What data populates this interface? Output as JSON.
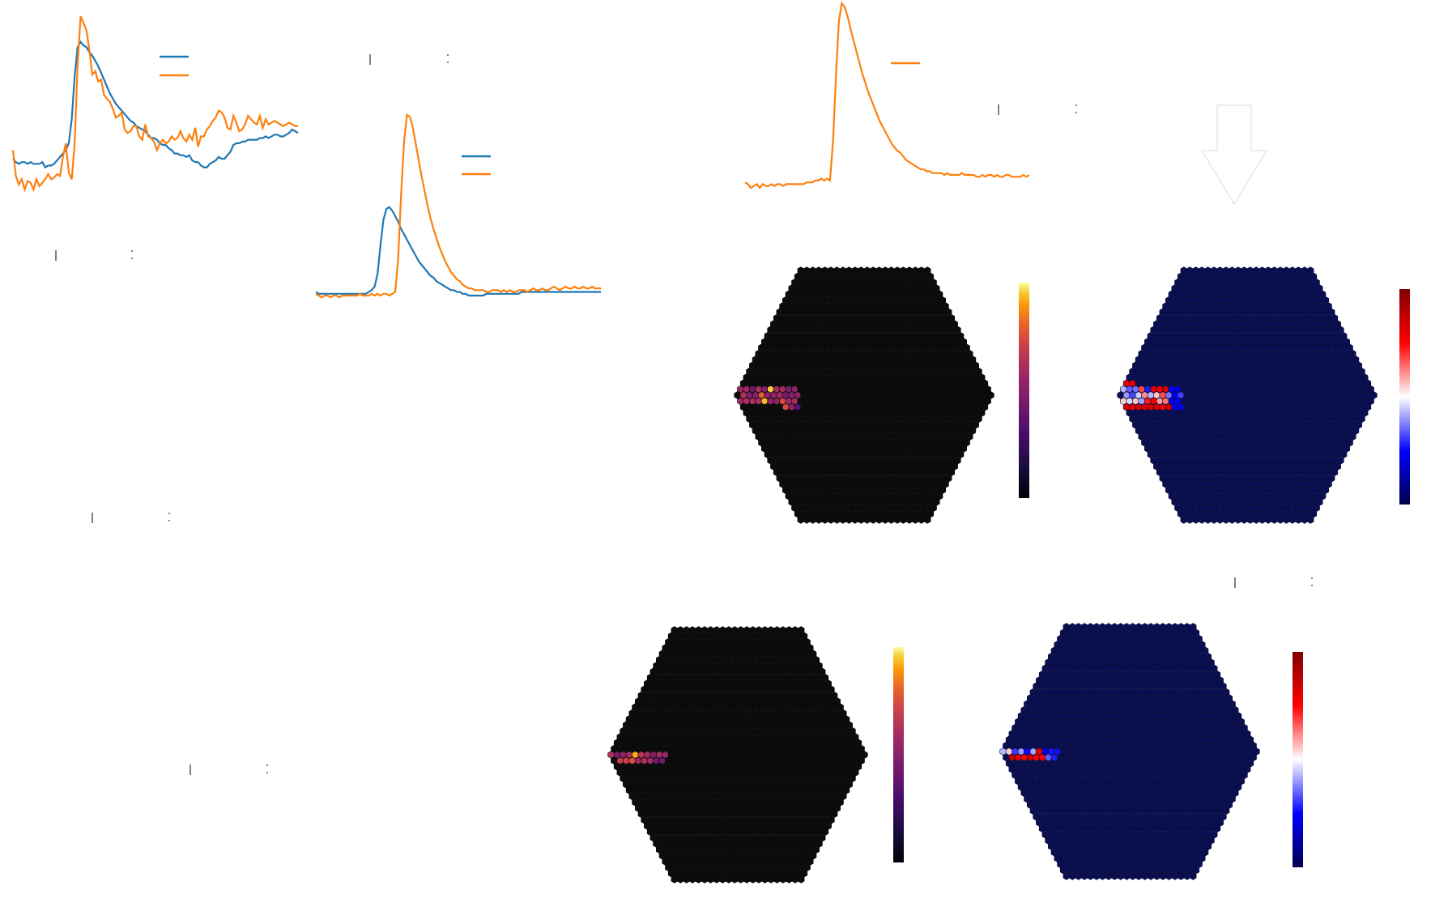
{
  "figure": {
    "colors": {
      "background": "#ffffff",
      "trace_blue": "#1f77b4",
      "trace_orange": "#ff7f0e",
      "camera_dark": "#0c0c0c",
      "camera_navy": "#0a0f52"
    },
    "icons": [
      "down-arrow-icon"
    ]
  },
  "chart_data": [
    {
      "type": "line",
      "panel": "waveform-noisy",
      "series": [
        {
          "color": "#1f77b4",
          "values": [
            0.17,
            0.15,
            0.14,
            0.15,
            0.15,
            0.14,
            0.15,
            0.14,
            0.14,
            0.14,
            0.15,
            0.12,
            0.13,
            0.13,
            0.14,
            0.16,
            0.18,
            0.2,
            0.22,
            0.26,
            0.4,
            0.65,
            0.82,
            0.85,
            0.83,
            0.82,
            0.79,
            0.77,
            0.74,
            0.71,
            0.67,
            0.63,
            0.59,
            0.55,
            0.52,
            0.49,
            0.47,
            0.45,
            0.43,
            0.41,
            0.39,
            0.38,
            0.36,
            0.35,
            0.34,
            0.33,
            0.31,
            0.29,
            0.29,
            0.28,
            0.26,
            0.25,
            0.25,
            0.23,
            0.22,
            0.2,
            0.2,
            0.19,
            0.19,
            0.18,
            0.19,
            0.16,
            0.15,
            0.15,
            0.13,
            0.12,
            0.12,
            0.14,
            0.15,
            0.16,
            0.18,
            0.17,
            0.17,
            0.19,
            0.21,
            0.25,
            0.26,
            0.26,
            0.27,
            0.27,
            0.28,
            0.28,
            0.28,
            0.28,
            0.29,
            0.29,
            0.3,
            0.29,
            0.3,
            0.31,
            0.31,
            0.3,
            0.3,
            0.31,
            0.32,
            0.34,
            0.33,
            0.32
          ]
        },
        {
          "color": "#ff7f0e",
          "values": [
            0.22,
            0.07,
            0.02,
            0.05,
            -0.01,
            0.04,
            0.03,
            -0.01,
            0.05,
            0.01,
            0.03,
            0.05,
            0.08,
            0.05,
            0.06,
            0.08,
            0.07,
            0.18,
            0.26,
            0.09,
            0.05,
            0.26,
            0.71,
            1.0,
            0.96,
            0.92,
            0.8,
            0.66,
            0.68,
            0.62,
            0.63,
            0.54,
            0.52,
            0.5,
            0.46,
            0.41,
            0.42,
            0.44,
            0.34,
            0.32,
            0.33,
            0.36,
            0.36,
            0.3,
            0.28,
            0.37,
            0.3,
            0.29,
            0.27,
            0.22,
            0.26,
            0.28,
            0.26,
            0.27,
            0.3,
            0.28,
            0.29,
            0.33,
            0.29,
            0.27,
            0.31,
            0.28,
            0.35,
            0.24,
            0.3,
            0.3,
            0.34,
            0.36,
            0.39,
            0.41,
            0.45,
            0.44,
            0.41,
            0.35,
            0.34,
            0.42,
            0.38,
            0.33,
            0.34,
            0.37,
            0.42,
            0.4,
            0.38,
            0.37,
            0.42,
            0.35,
            0.4,
            0.37,
            0.38,
            0.39,
            0.38,
            0.37,
            0.36,
            0.37,
            0.38,
            0.37,
            0.36,
            0.36
          ]
        }
      ]
    },
    {
      "type": "line",
      "panel": "waveform-smooth",
      "series": [
        {
          "color": "#1f77b4",
          "values": [
            0.02,
            0.01,
            0.01,
            0.01,
            0.01,
            0.01,
            0.01,
            0.01,
            0.01,
            0.01,
            0.01,
            0.01,
            0.01,
            0.01,
            0.01,
            0.01,
            0.01,
            0.01,
            0.02,
            0.03,
            0.05,
            0.12,
            0.28,
            0.42,
            0.48,
            0.49,
            0.47,
            0.44,
            0.41,
            0.37,
            0.34,
            0.31,
            0.28,
            0.25,
            0.22,
            0.19,
            0.17,
            0.15,
            0.13,
            0.11,
            0.1,
            0.08,
            0.07,
            0.06,
            0.05,
            0.04,
            0.03,
            0.03,
            0.02,
            0.02,
            0.01,
            0.01,
            0.0,
            0.0,
            0.0,
            0.0,
            0.0,
            0.0,
            0.01,
            0.01,
            0.01,
            0.01,
            0.01,
            0.01,
            0.01,
            0.01,
            0.01,
            0.01,
            0.01,
            0.01,
            0.02,
            0.02,
            0.02,
            0.02,
            0.02,
            0.02,
            0.02,
            0.02,
            0.02,
            0.02,
            0.02,
            0.02,
            0.02,
            0.02,
            0.02,
            0.02,
            0.02,
            0.02,
            0.02,
            0.02,
            0.02,
            0.02,
            0.02,
            0.02,
            0.02,
            0.02,
            0.02,
            0.02
          ]
        },
        {
          "color": "#ff7f0e",
          "values": [
            0.01,
            0.0,
            -0.01,
            0.0,
            0.0,
            -0.01,
            0.0,
            0.0,
            -0.01,
            0.0,
            0.0,
            0.0,
            0.0,
            0.0,
            0.0,
            0.01,
            0.0,
            0.0,
            0.0,
            0.01,
            0.0,
            0.01,
            0.0,
            0.01,
            0.01,
            0.0,
            0.01,
            0.02,
            0.2,
            0.55,
            0.85,
            1.0,
            0.99,
            0.93,
            0.84,
            0.75,
            0.66,
            0.58,
            0.5,
            0.43,
            0.37,
            0.32,
            0.27,
            0.23,
            0.19,
            0.16,
            0.13,
            0.11,
            0.09,
            0.08,
            0.06,
            0.05,
            0.04,
            0.04,
            0.03,
            0.03,
            0.03,
            0.03,
            0.02,
            0.02,
            0.03,
            0.03,
            0.03,
            0.02,
            0.03,
            0.02,
            0.03,
            0.02,
            0.02,
            0.03,
            0.03,
            0.03,
            0.02,
            0.03,
            0.04,
            0.03,
            0.03,
            0.04,
            0.03,
            0.03,
            0.04,
            0.05,
            0.04,
            0.03,
            0.04,
            0.05,
            0.04,
            0.04,
            0.05,
            0.04,
            0.04,
            0.05,
            0.04,
            0.04,
            0.05,
            0.04,
            0.04,
            0.04
          ]
        }
      ]
    },
    {
      "type": "line",
      "panel": "waveform-single",
      "series": [
        {
          "color": "#ff7f0e",
          "values": [
            0.03,
            0.02,
            0.0,
            0.01,
            0.02,
            0.0,
            0.02,
            0.01,
            0.01,
            0.02,
            0.01,
            0.02,
            0.02,
            0.01,
            0.02,
            0.02,
            0.02,
            0.02,
            0.02,
            0.02,
            0.02,
            0.03,
            0.03,
            0.03,
            0.04,
            0.04,
            0.05,
            0.04,
            0.05,
            0.04,
            0.25,
            0.6,
            0.9,
            1.0,
            0.98,
            0.93,
            0.86,
            0.8,
            0.74,
            0.68,
            0.62,
            0.57,
            0.52,
            0.48,
            0.44,
            0.4,
            0.36,
            0.33,
            0.3,
            0.27,
            0.24,
            0.22,
            0.2,
            0.19,
            0.17,
            0.15,
            0.14,
            0.13,
            0.12,
            0.11,
            0.1,
            0.1,
            0.09,
            0.09,
            0.08,
            0.08,
            0.08,
            0.08,
            0.07,
            0.08,
            0.07,
            0.07,
            0.07,
            0.07,
            0.08,
            0.07,
            0.07,
            0.07,
            0.07,
            0.06,
            0.06,
            0.07,
            0.06,
            0.07,
            0.07,
            0.06,
            0.07,
            0.06,
            0.06,
            0.07,
            0.07,
            0.06,
            0.06,
            0.06,
            0.06,
            0.07,
            0.06,
            0.07
          ]
        }
      ]
    },
    {
      "type": "heatmap",
      "panel": "camera-charge-top",
      "colormap": "inferno",
      "background": "#0c0c0c",
      "event": {
        "u0": -0.88,
        "v0": 0.0,
        "length": 0.42,
        "width": 0.07,
        "peak": 1.0,
        "min": 0.18
      }
    },
    {
      "type": "heatmap",
      "panel": "camera-time-top",
      "colormap": "seismic",
      "background": "#0a0f52",
      "event": {
        "u0": -0.88,
        "v0": 0.0,
        "length": 0.42,
        "width": 0.09,
        "peak": 1.0,
        "min": 0.3
      }
    },
    {
      "type": "heatmap",
      "panel": "camera-charge-bottom",
      "colormap": "inferno",
      "background": "#0c0c0c",
      "event": {
        "u0": -0.92,
        "v0": 0.0,
        "length": 0.4,
        "width": 0.04,
        "peak": 1.0,
        "min": 0.18
      }
    },
    {
      "type": "heatmap",
      "panel": "camera-time-bottom",
      "colormap": "seismic",
      "background": "#0a0f52",
      "event": {
        "u0": -0.92,
        "v0": 0.0,
        "length": 0.4,
        "width": 0.04,
        "peak": 0.7,
        "min": 0.3
      }
    }
  ]
}
